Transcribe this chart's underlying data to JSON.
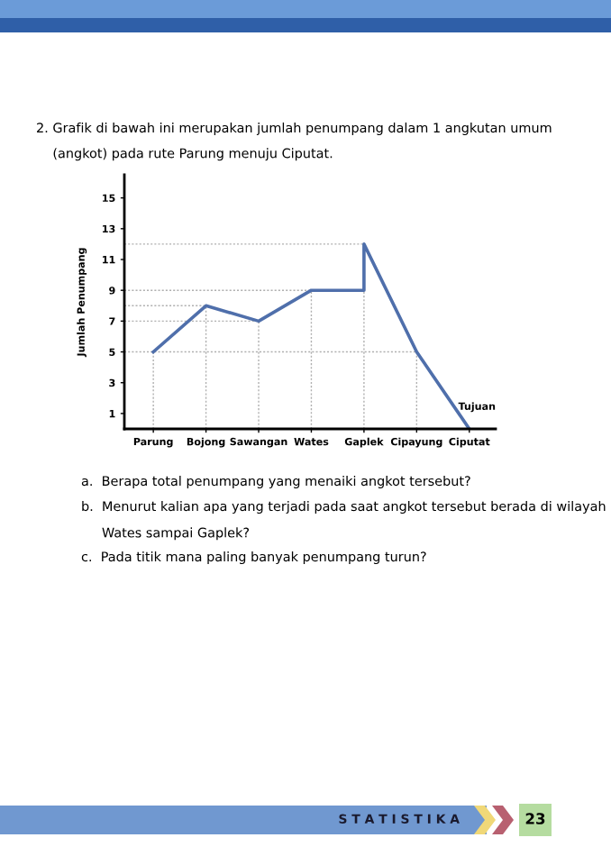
{
  "chart_data": {
    "type": "line",
    "title": "2. Grafik di bawah ini merupakan jumlah penumpang dalam 1 angkutan umum\n    (angkot) pada rute Parung menuju Ciputat.",
    "xlabel": "Tujuan",
    "ylabel": "Jumlah Penumpang",
    "categories": [
      "Parung",
      "Bojong",
      "Sawangan",
      "Wates",
      "Gaplek",
      "Cipayung",
      "Ciputat"
    ],
    "series": [
      {
        "color": "#4f6fab",
        "x": [
          "Parung",
          "Bojong",
          "Sawangan",
          "Wates",
          "Gaplek",
          "Gaplek",
          "Cipayung",
          "Ciputat"
        ],
        "values": [
          5,
          8,
          7,
          9,
          9,
          12,
          5,
          0
        ]
      }
    ],
    "ylim": [
      0,
      16.5
    ],
    "yticks": [
      1,
      3,
      5,
      7,
      9,
      11,
      13,
      15
    ],
    "annotations": [
      "a.  Berapa total penumpang yang menaiki angkot tersebut?",
      "b.  Menurut kalian apa yang terjadi pada saat angkot tersebut berada di wilayah\n     Wates sampai Gaplek?",
      "c.  Pada titik mana paling banyak penumpang turun?",
      "S T A T I S T I K A",
      "23"
    ],
    "ref_lines": [
      {
        "axis": "y",
        "value": 5,
        "color": "#b0b0b0",
        "line_style": "dotted"
      },
      {
        "axis": "y",
        "value": 7,
        "color": "#b0b0b0",
        "line_style": "dotted"
      },
      {
        "axis": "y",
        "value": 8,
        "color": "#b0b0b0",
        "line_style": "dotted"
      },
      {
        "axis": "y",
        "value": 9,
        "color": "#b0b0b0",
        "line_style": "dotted"
      },
      {
        "axis": "y",
        "value": 12,
        "color": "#b0b0b0",
        "line_style": "dotted"
      },
      {
        "axis": "x",
        "value": "Parung",
        "color": "#b0b0b0",
        "line_style": "dotted"
      },
      {
        "axis": "x",
        "value": "Bojong",
        "color": "#b0b0b0",
        "line_style": "dotted"
      },
      {
        "axis": "x",
        "value": "Sawangan",
        "color": "#b0b0b0",
        "line_style": "dotted"
      },
      {
        "axis": "x",
        "value": "Wates",
        "color": "#b0b0b0",
        "line_style": "dotted"
      },
      {
        "axis": "x",
        "value": "Gaplek",
        "color": "#b0b0b0",
        "line_style": "dotted"
      },
      {
        "axis": "x",
        "value": "Cipayung",
        "color": "#b0b0b0",
        "line_style": "dotted"
      }
    ],
    "marker": "none",
    "line_style": "solid",
    "grid": false,
    "legend": false
  }
}
